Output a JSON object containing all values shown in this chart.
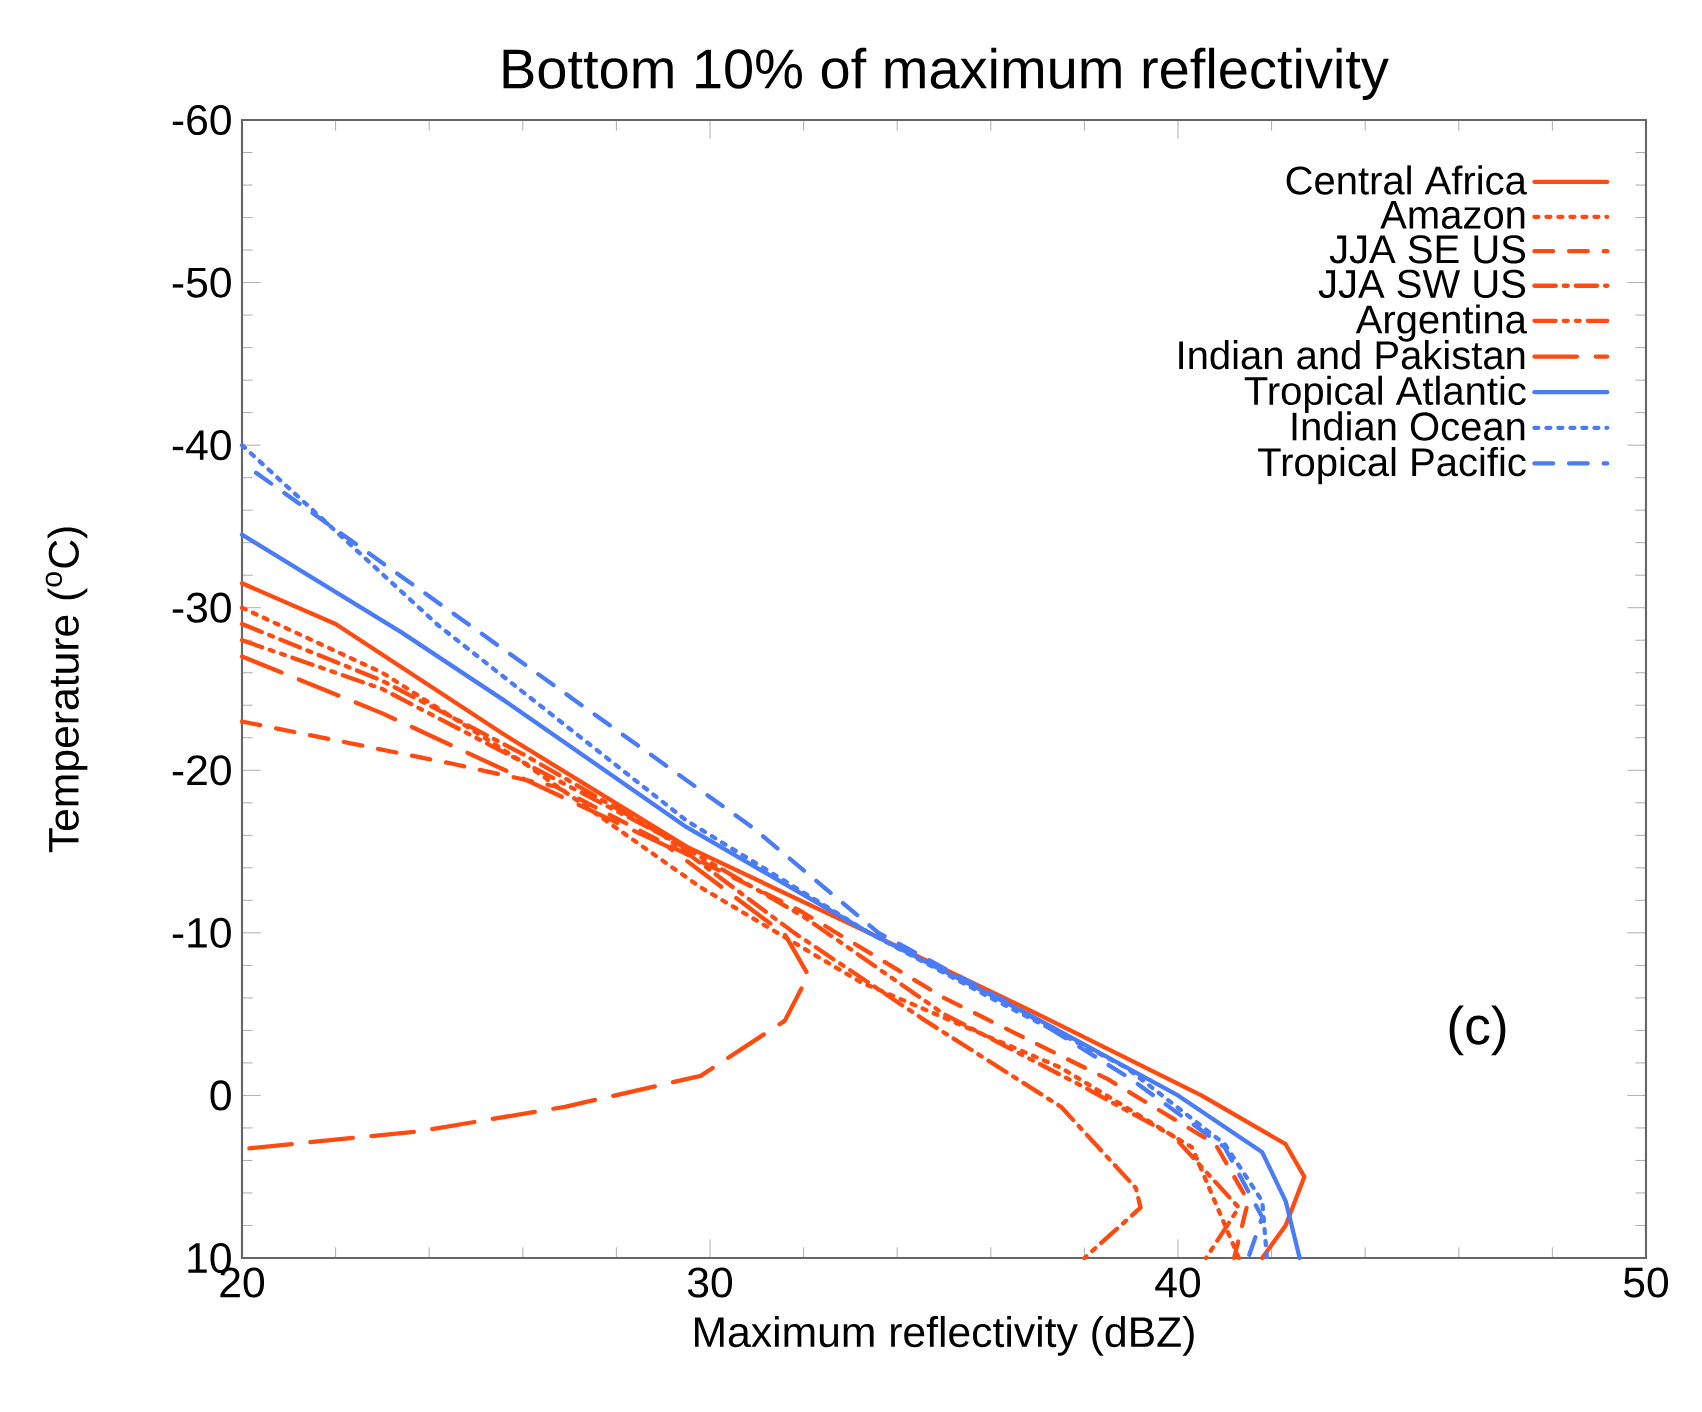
{
  "chart_data": {
    "type": "line",
    "title": "Bottom 10% of maximum reflectivity",
    "xlabel": "Maximum reflectivity (dBZ)",
    "ylabel": "Temperature ($^{o}$C)",
    "xlim": [
      20,
      50
    ],
    "xticks": [
      20,
      30,
      40,
      50
    ],
    "ylim": [
      10,
      -60
    ],
    "yticks": [
      10,
      0,
      -10,
      -20,
      -30,
      -40,
      -50,
      -60
    ],
    "legend": "top right",
    "marker": "none",
    "grid": false,
    "annotations": [
      "(c)"
    ],
    "series": [
      {
        "name": "Central Africa",
        "color": "#ff4a10",
        "line_style": "solid",
        "x": [
          20,
          22,
          25.6,
          29.5,
          33.4,
          37,
          40.5,
          42.3,
          42.7,
          42.3,
          41.8
        ],
        "values": [
          -31.5,
          -29,
          -22.2,
          -15.3,
          -10,
          -5,
          0,
          3,
          5,
          8,
          10
        ]
      },
      {
        "name": "Amazon",
        "color": "#ff4a10",
        "line_style": "dotted",
        "x": [
          20,
          23,
          26,
          29.8,
          33.2,
          37.5,
          40.3,
          41.3
        ],
        "values": [
          -30,
          -26,
          -20.5,
          -12.8,
          -7,
          -1.7,
          3.2,
          10
        ]
      },
      {
        "name": "JJA SE US",
        "color": "#ff4a10",
        "line_style": "dashed",
        "x": [
          20,
          24.5,
          26.7,
          28.9,
          31.9,
          35,
          38.5,
          40.8,
          41.5,
          41.2
        ],
        "values": [
          -23,
          -20.4,
          -19,
          -15.7,
          -11.4,
          -6,
          -1,
          3,
          6.5,
          10
        ]
      },
      {
        "name": "JJA SW US",
        "color": "#ff4a10",
        "line_style": "dashdot",
        "x": [
          20,
          23,
          26,
          29,
          31.8,
          34.6,
          37.5,
          39.1,
          39.2,
          38
        ],
        "values": [
          -29,
          -25.5,
          -21,
          -16,
          -10,
          -4.6,
          0.7,
          5.7,
          6.9,
          10
        ]
      },
      {
        "name": "Argentina",
        "color": "#ff4a10",
        "line_style": "dashdotdot",
        "x": [
          20,
          23,
          26,
          29,
          32,
          35,
          38,
          39.9,
          41.3,
          40.6
        ],
        "values": [
          -28,
          -25,
          -20.5,
          -16,
          -11,
          -5,
          -0.5,
          2.5,
          6.9,
          10
        ]
      },
      {
        "name": "Indian and Pakistan",
        "color": "#ff4a10",
        "line_style": "longdash",
        "x": [
          20,
          23,
          26,
          29.1,
          31.6,
          32.1,
          31.6,
          29.8,
          26.9,
          23.8,
          20
        ],
        "values": [
          -27,
          -23.5,
          -19.5,
          -15.3,
          -9.9,
          -7.4,
          -4.6,
          -1.2,
          0.7,
          2.2,
          3.3
        ]
      },
      {
        "name": "Tropical Atlantic",
        "color": "#4a7cf7",
        "line_style": "solid",
        "x": [
          20,
          23.4,
          25.6,
          29.5,
          33.4,
          36.8,
          40,
          41.8,
          42.3,
          42.6
        ],
        "values": [
          -34.5,
          -28.5,
          -24.3,
          -16.5,
          -10,
          -5,
          0,
          3.5,
          6.5,
          10
        ]
      },
      {
        "name": "Indian Ocean",
        "color": "#4a7cf7",
        "line_style": "dotted",
        "x": [
          20,
          24.2,
          29.5,
          33.4,
          36,
          38.9,
          41,
          41.8,
          41.9
        ],
        "values": [
          -40,
          -28.9,
          -16.9,
          -10,
          -6,
          -1.7,
          3,
          6.5,
          10
        ]
      },
      {
        "name": "Tropical Pacific",
        "color": "#4a7cf7",
        "line_style": "dashed",
        "x": [
          20.3,
          25.9,
          30.9,
          33.6,
          36.5,
          39,
          41,
          41.8,
          41.5
        ],
        "values": [
          -38.3,
          -26.8,
          -16.5,
          -10,
          -5.5,
          -1,
          3.2,
          7.5,
          10
        ]
      }
    ]
  }
}
